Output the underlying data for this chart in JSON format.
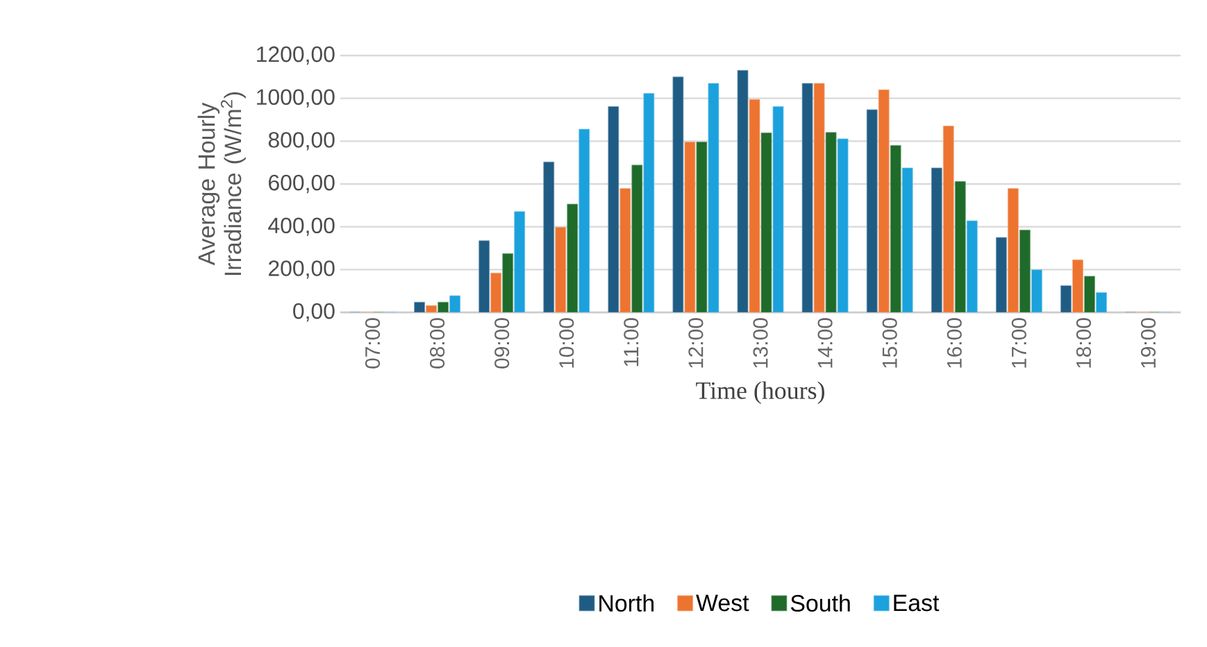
{
  "chart_data": {
    "type": "bar",
    "xlabel": "Time (hours)",
    "ylabel": "Average Hourly Irradiance (W/m$^{2}$)",
    "categories": [
      "07:00",
      "08:00",
      "09:00",
      "10:00",
      "11:00",
      "12:00",
      "13:00",
      "14:00",
      "15:00",
      "16:00",
      "17:00",
      "18:00",
      "19:00"
    ],
    "series": [
      {
        "name": "North",
        "color": "#1f5c84",
        "values": [
          0,
          48,
          335,
          703,
          962,
          1100,
          1131,
          1070,
          947,
          675,
          350,
          125,
          0
        ]
      },
      {
        "name": "West",
        "color": "#ed7430",
        "values": [
          0,
          32,
          184,
          398,
          579,
          796,
          995,
          1070,
          1040,
          871,
          579,
          246,
          0
        ]
      },
      {
        "name": "South",
        "color": "#1e6b2a",
        "values": [
          0,
          48,
          275,
          506,
          688,
          796,
          839,
          841,
          780,
          612,
          385,
          169,
          0
        ]
      },
      {
        "name": "East",
        "color": "#1ba1dc",
        "values": [
          0,
          78,
          471,
          856,
          1023,
          1070,
          962,
          811,
          675,
          428,
          199,
          93,
          0
        ]
      }
    ],
    "ylim": [
      0,
      1200
    ],
    "yticks": [
      {
        "value": 0,
        "label": "0,00"
      },
      {
        "value": 200,
        "label": "200,00"
      },
      {
        "value": 400,
        "label": "400,00"
      },
      {
        "value": 600,
        "label": "600,00"
      },
      {
        "value": 800,
        "label": "800,00"
      },
      {
        "value": 1000,
        "label": "1000,00"
      },
      {
        "value": 1200,
        "label": "1200,00"
      }
    ],
    "grid": "y",
    "legend": "bottom"
  }
}
